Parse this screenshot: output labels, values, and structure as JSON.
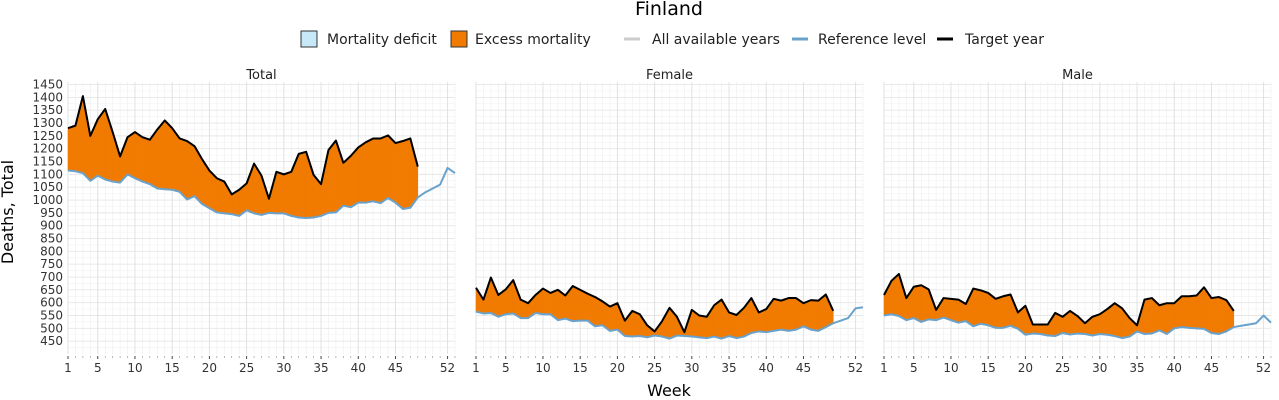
{
  "chart_data": {
    "type": "area",
    "title": "Finland",
    "xlabel": "Week",
    "ylabel": "Deaths, Total",
    "x_ticks": [
      1,
      5,
      10,
      15,
      20,
      25,
      30,
      35,
      40,
      45,
      52
    ],
    "y_ticks": [
      450,
      500,
      550,
      600,
      650,
      700,
      750,
      800,
      850,
      900,
      950,
      1000,
      1050,
      1100,
      1150,
      1200,
      1250,
      1300,
      1350,
      1400,
      1450
    ],
    "ylim": [
      400,
      1460
    ],
    "xlim": [
      1,
      53
    ],
    "grid": true,
    "legend_position": "top",
    "legend": [
      {
        "label": "Mortality deficit",
        "kind": "fill",
        "color": "#c6e8f7"
      },
      {
        "label": "Excess mortality",
        "kind": "fill",
        "color": "#f07b00"
      },
      {
        "label": "All available years",
        "kind": "line",
        "color": "#cccccc"
      },
      {
        "label": "Reference level",
        "kind": "line",
        "color": "#6aa2cc"
      },
      {
        "label": "Target year",
        "kind": "line",
        "color": "#000000"
      }
    ],
    "panels": [
      {
        "name": "Total",
        "reference": [
          1115,
          1112,
          1105,
          1075,
          1095,
          1080,
          1072,
          1068,
          1100,
          1085,
          1072,
          1062,
          1045,
          1042,
          1040,
          1032,
          1002,
          1015,
          985,
          968,
          952,
          948,
          945,
          938,
          960,
          948,
          942,
          950,
          948,
          948,
          938,
          932,
          930,
          932,
          938,
          950,
          952,
          978,
          972,
          990,
          990,
          995,
          988,
          1008,
          990,
          965,
          970,
          1010,
          1030,
          1045,
          1060,
          1125,
          1105
        ],
        "target": [
          1280,
          1290,
          1405,
          1250,
          1315,
          1355,
          1265,
          1170,
          1245,
          1265,
          1245,
          1235,
          1275,
          1310,
          1280,
          1240,
          1230,
          1210,
          1160,
          1115,
          1085,
          1072,
          1022,
          1040,
          1065,
          1142,
          1095,
          1005,
          1110,
          1100,
          1110,
          1180,
          1188,
          1098,
          1062,
          1195,
          1232,
          1145,
          1172,
          1205,
          1225,
          1240,
          1240,
          1252,
          1222,
          1230,
          1240,
          1130
        ]
      },
      {
        "name": "Female",
        "reference": [
          565,
          558,
          560,
          545,
          555,
          558,
          540,
          540,
          560,
          555,
          555,
          532,
          538,
          528,
          530,
          530,
          508,
          512,
          490,
          495,
          470,
          468,
          470,
          465,
          472,
          468,
          460,
          472,
          470,
          468,
          465,
          462,
          468,
          460,
          470,
          462,
          468,
          482,
          488,
          485,
          490,
          495,
          490,
          495,
          508,
          495,
          490,
          505,
          520,
          530,
          540,
          578,
          582
        ],
        "target": [
          658,
          612,
          698,
          630,
          652,
          688,
          612,
          598,
          630,
          655,
          638,
          650,
          628,
          665,
          650,
          635,
          622,
          605,
          585,
          598,
          530,
          568,
          555,
          512,
          488,
          528,
          580,
          545,
          485,
          572,
          550,
          545,
          590,
          612,
          562,
          552,
          580,
          618,
          562,
          575,
          615,
          608,
          618,
          618,
          598,
          610,
          608,
          632,
          568
        ]
      },
      {
        "name": "Male",
        "reference": [
          550,
          555,
          548,
          532,
          540,
          525,
          535,
          532,
          542,
          532,
          522,
          528,
          508,
          518,
          512,
          502,
          502,
          510,
          498,
          475,
          480,
          478,
          472,
          470,
          482,
          476,
          480,
          478,
          472,
          478,
          475,
          470,
          462,
          468,
          488,
          478,
          480,
          492,
          478,
          500,
          505,
          502,
          500,
          498,
          482,
          478,
          488,
          505,
          510,
          515,
          520,
          550,
          522
        ],
        "target": [
          630,
          685,
          712,
          618,
          662,
          668,
          652,
          572,
          618,
          615,
          612,
          595,
          655,
          648,
          638,
          615,
          625,
          632,
          562,
          588,
          515,
          515,
          515,
          560,
          545,
          568,
          548,
          520,
          545,
          555,
          575,
          598,
          578,
          540,
          512,
          612,
          618,
          590,
          598,
          598,
          625,
          625,
          628,
          660,
          618,
          622,
          610,
          568
        ]
      }
    ]
  }
}
